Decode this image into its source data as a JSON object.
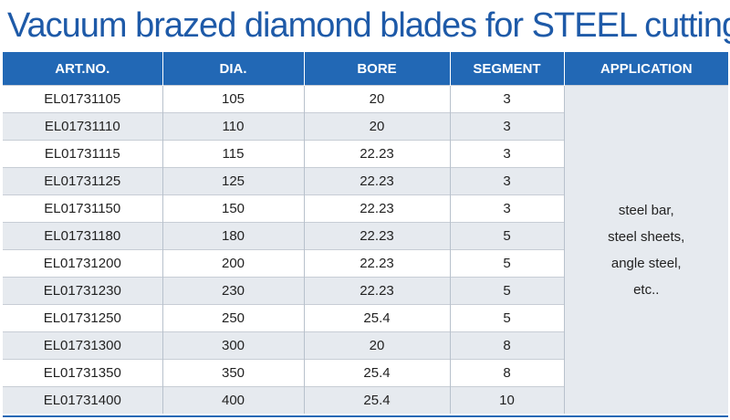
{
  "title": "Vacuum brazed diamond blades for STEEL cutting",
  "headers": [
    "ART.NO.",
    "DIA.",
    "BORE",
    "SEGMENT",
    "APPLICATION"
  ],
  "rows": [
    [
      "EL01731105",
      "105",
      "20",
      "3"
    ],
    [
      "EL01731110",
      "110",
      "20",
      "3"
    ],
    [
      "EL01731115",
      "115",
      "22.23",
      "3"
    ],
    [
      "EL01731125",
      "125",
      "22.23",
      "3"
    ],
    [
      "EL01731150",
      "150",
      "22.23",
      "3"
    ],
    [
      "EL01731180",
      "180",
      "22.23",
      "5"
    ],
    [
      "EL01731200",
      "200",
      "22.23",
      "5"
    ],
    [
      "EL01731230",
      "230",
      "22.23",
      "5"
    ],
    [
      "EL01731250",
      "250",
      "25.4",
      "5"
    ],
    [
      "EL01731300",
      "300",
      "20",
      "8"
    ],
    [
      "EL01731350",
      "350",
      "25.4",
      "8"
    ],
    [
      "EL01731400",
      "400",
      "25.4",
      "10"
    ]
  ],
  "application": [
    "steel bar,",
    "steel sheets,",
    "angle steel,",
    "etc.."
  ],
  "colors": {
    "title": "#1e5aa8",
    "header_bg": "#2268b5",
    "row_alt": "#e6eaef"
  }
}
